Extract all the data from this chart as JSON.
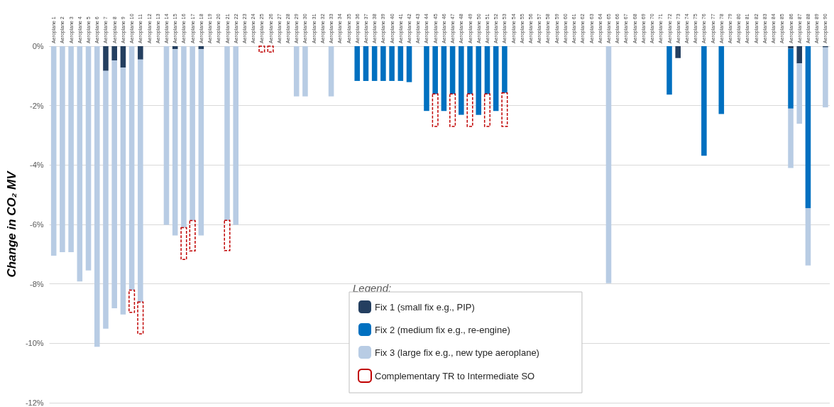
{
  "chart_data": {
    "type": "bar",
    "stacked": true,
    "ylabel": "Change in CO₂ MV",
    "legend_title": "Legend:",
    "legend": "bottom",
    "grid": "y",
    "categories": [
      "Aeroplane 1",
      "Aeroplane 2",
      "Aeroplane 3",
      "Aeroplane 4",
      "Aeroplane 5",
      "Aeroplane 6",
      "Aeroplane 7",
      "Aeroplane 8",
      "Aeroplane 9",
      "Aeroplane 10",
      "Aeroplane 11",
      "Aeroplane 12",
      "Aeroplane 13",
      "Aeroplane 14",
      "Aeroplane 15",
      "Aeroplane 16",
      "Aeroplane 17",
      "Aeroplane 18",
      "Aeroplane 19",
      "Aeroplane 20",
      "Aeroplane 21",
      "Aeroplane 22",
      "Aeroplane 23",
      "Aeroplane 24",
      "Aeroplane 25",
      "Aeroplane 26",
      "Aeroplane 27",
      "Aeroplane 28",
      "Aeroplane 29",
      "Aeroplane 30",
      "Aeroplane 31",
      "Aeroplane 32",
      "Aeroplane 33",
      "Aeroplane 34",
      "Aeroplane 35",
      "Aeroplane 36",
      "Aeroplane 37",
      "Aeroplane 38",
      "Aeroplane 39",
      "Aeroplane 40",
      "Aeroplane 41",
      "Aeroplane 42",
      "Aeroplane 43",
      "Aeroplane 44",
      "Aeroplane 45",
      "Aeroplane 46",
      "Aeroplane 47",
      "Aeroplane 48",
      "Aeroplane 49",
      "Aeroplane 50",
      "Aeroplane 51",
      "Aeroplane 52",
      "Aeroplane 53",
      "Aeroplane 54",
      "Aeroplane 55",
      "Aeroplane 56",
      "Aeroplane 57",
      "Aeroplane 58",
      "Aeroplane 59",
      "Aeroplane 60",
      "Aeroplane 61",
      "Aeroplane 62",
      "Aeroplane 63",
      "Aeroplane 64",
      "Aeroplane 65",
      "Aeroplane 66",
      "Aeroplane 67",
      "Aeroplane 68",
      "Aeroplane 69",
      "Aeroplane 70",
      "Aeroplane 71",
      "Aeroplane 72",
      "Aeroplane 73",
      "Aeroplane 74",
      "Aeroplane 75",
      "Aeroplane 76",
      "Aeroplane 77",
      "Aeroplane 78",
      "Aeroplane 79",
      "Aeroplane 80",
      "Aeroplane 81",
      "Aeroplane 82",
      "Aeroplane 83",
      "Aeroplane 84",
      "Aeroplane 85",
      "Aeroplane 86",
      "Aeroplane 87",
      "Aeroplane 88",
      "Aeroplane 89",
      "Aeroplane 90"
    ],
    "ylim": [
      -12,
      0
    ],
    "yticks": [
      {
        "value": 0,
        "label": "0%"
      },
      {
        "value": -2,
        "label": "-2%"
      },
      {
        "value": -4,
        "label": "-4%"
      },
      {
        "value": -6,
        "label": "-6%"
      },
      {
        "value": -8,
        "label": "-8%"
      },
      {
        "value": -10,
        "label": "-10%"
      },
      {
        "value": -12,
        "label": "-12%"
      }
    ],
    "series": [
      {
        "name": "Fix 1 (small fix e.g., PIP)",
        "color": "#243f60",
        "values": [
          null,
          null,
          null,
          null,
          null,
          null,
          -0.83,
          -0.48,
          -0.72,
          null,
          -0.45,
          null,
          null,
          null,
          -0.1,
          null,
          null,
          -0.1,
          null,
          null,
          null,
          null,
          null,
          null,
          null,
          null,
          null,
          null,
          null,
          null,
          null,
          null,
          null,
          null,
          null,
          null,
          null,
          null,
          null,
          null,
          null,
          null,
          null,
          null,
          null,
          null,
          null,
          null,
          null,
          null,
          null,
          null,
          null,
          null,
          null,
          null,
          null,
          null,
          null,
          null,
          null,
          null,
          null,
          null,
          null,
          null,
          null,
          null,
          null,
          null,
          null,
          null,
          -0.4,
          null,
          null,
          null,
          null,
          null,
          null,
          null,
          null,
          null,
          null,
          null,
          null,
          -0.08,
          -0.58,
          null,
          null,
          -0.04
        ]
      },
      {
        "name": "Fix 2 (medium fix e.g., re-engine)",
        "color": "#0070c0",
        "values": [
          null,
          null,
          null,
          null,
          null,
          null,
          null,
          null,
          null,
          null,
          null,
          null,
          null,
          null,
          null,
          null,
          null,
          null,
          null,
          null,
          null,
          null,
          null,
          null,
          null,
          null,
          null,
          null,
          null,
          null,
          null,
          null,
          null,
          null,
          null,
          -1.17,
          -1.17,
          -1.17,
          -1.17,
          -1.17,
          -1.17,
          -1.21,
          null,
          -2.18,
          -1.61,
          -2.18,
          -1.61,
          -2.31,
          -1.61,
          -2.31,
          -1.61,
          -2.18,
          -1.57,
          null,
          null,
          null,
          null,
          null,
          null,
          null,
          null,
          null,
          null,
          null,
          null,
          null,
          null,
          null,
          null,
          null,
          null,
          -1.63,
          null,
          null,
          null,
          -3.69,
          null,
          -2.28,
          null,
          null,
          null,
          null,
          null,
          null,
          null,
          -2.02,
          null,
          -5.45,
          null,
          null
        ]
      },
      {
        "name": "Fix 3 (large fix e.g., new type aeroplane)",
        "color": "#b8cce4",
        "values": [
          -7.05,
          -6.93,
          -6.93,
          -7.92,
          -7.55,
          -10.12,
          -8.68,
          -8.34,
          -8.31,
          -8.21,
          -8.16,
          null,
          null,
          -6.01,
          -6.27,
          -6.11,
          -5.87,
          -6.27,
          null,
          null,
          -5.87,
          -6.01,
          null,
          null,
          null,
          null,
          null,
          null,
          -1.69,
          -1.69,
          null,
          null,
          -1.69,
          null,
          null,
          null,
          null,
          null,
          null,
          null,
          null,
          null,
          null,
          null,
          null,
          null,
          null,
          null,
          null,
          null,
          null,
          null,
          null,
          null,
          null,
          null,
          null,
          null,
          null,
          null,
          null,
          null,
          null,
          null,
          -7.98,
          null,
          null,
          null,
          null,
          null,
          null,
          null,
          null,
          null,
          null,
          null,
          null,
          null,
          null,
          null,
          null,
          null,
          null,
          null,
          null,
          -2.0,
          -2.03,
          -1.93,
          null,
          -2.02
        ]
      },
      {
        "name": "Complementary TR to Intermediate SO",
        "color": "#c00000",
        "line_style": "dashed",
        "base": [
          null,
          null,
          null,
          null,
          null,
          null,
          null,
          null,
          null,
          -8.21,
          -8.61,
          null,
          null,
          null,
          null,
          -6.11,
          -5.87,
          null,
          null,
          null,
          -5.86,
          null,
          null,
          null,
          0,
          0,
          null,
          null,
          null,
          null,
          null,
          null,
          null,
          null,
          null,
          null,
          null,
          null,
          null,
          null,
          null,
          null,
          null,
          null,
          -1.61,
          null,
          -1.61,
          null,
          -1.61,
          null,
          -1.61,
          null,
          -1.57,
          null,
          null,
          null,
          null,
          null,
          null,
          null,
          null,
          null,
          null,
          null,
          null,
          null,
          null,
          null,
          null,
          null,
          null,
          null,
          null,
          null,
          null,
          null,
          null,
          null,
          null,
          null,
          null,
          null,
          null,
          null,
          null,
          null,
          null,
          null,
          null,
          null
        ],
        "values": [
          null,
          null,
          null,
          null,
          null,
          null,
          null,
          null,
          null,
          -0.75,
          -1.07,
          null,
          null,
          null,
          null,
          -1.07,
          -1.02,
          null,
          null,
          null,
          -1.02,
          null,
          null,
          null,
          -0.2,
          -0.2,
          null,
          null,
          null,
          null,
          null,
          null,
          null,
          null,
          null,
          null,
          null,
          null,
          null,
          null,
          null,
          null,
          null,
          null,
          -1.09,
          null,
          -1.09,
          null,
          -1.09,
          null,
          -1.09,
          null,
          -1.13,
          null,
          null,
          null,
          null,
          null,
          null,
          null,
          null,
          null,
          null,
          null,
          null,
          null,
          null,
          null,
          null,
          null,
          null,
          null,
          null,
          null,
          null,
          null,
          null,
          null,
          null,
          null,
          null,
          null,
          null,
          null,
          null,
          null,
          null,
          null,
          null,
          null
        ]
      }
    ]
  }
}
